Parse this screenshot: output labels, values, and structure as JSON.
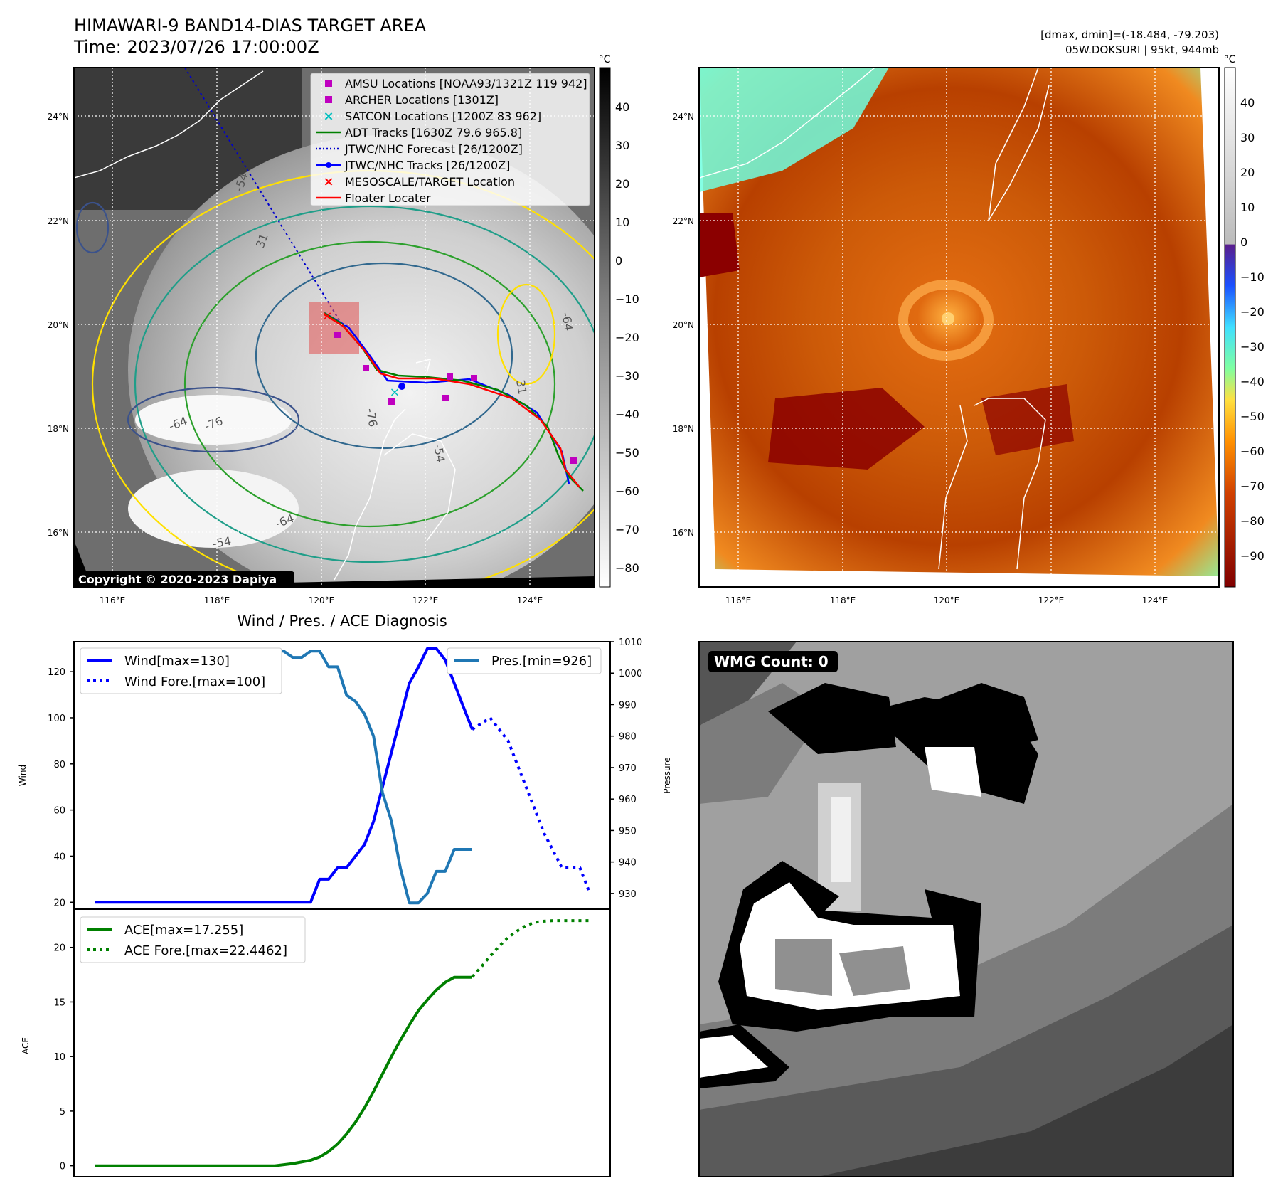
{
  "header": {
    "title": "HIMAWARI-9 BAND14-DIAS TARGET AREA",
    "time": "Time: 2023/07/26 17:00:00Z",
    "stats": "[dmax, dmin]=(-18.484, -79.203)",
    "storm": "05W.DOKSURI | 95kt, 944mb"
  },
  "map_left": {
    "copyright": "Copyright © 2020-2023 Dapiya",
    "lat_labels": [
      "24°N",
      "22°N",
      "20°N",
      "18°N",
      "16°N"
    ],
    "lon_labels": [
      "116°E",
      "118°E",
      "120°E",
      "122°E",
      "124°E"
    ],
    "colorbar_unit": "°C",
    "colorbar_ticks": [
      "40",
      "30",
      "20",
      "10",
      "0",
      "−10",
      "−20",
      "−30",
      "−40",
      "−50",
      "−60",
      "−70",
      "−80"
    ],
    "contour_labels": [
      "-54",
      "31",
      "-64",
      "-76",
      "-64",
      "-54",
      "-64",
      "31",
      "-76",
      "-54"
    ],
    "legend": [
      {
        "label": "AMSU Locations [NOAA93/1321Z 119 942]",
        "color": "#bf00bf",
        "marker": "square"
      },
      {
        "label": "ARCHER Locations [1301Z]",
        "color": "#bf00bf",
        "marker": "square"
      },
      {
        "label": "SATCON Locations [1200Z 83 962]",
        "color": "#00bfbf",
        "marker": "x"
      },
      {
        "label": "ADT Tracks [1630Z 79.6 965.8]",
        "color": "#008000",
        "marker": "line"
      },
      {
        "label": "JTWC/NHC Forecast [26/1200Z]",
        "color": "#0000cc",
        "marker": "dotted"
      },
      {
        "label": "JTWC/NHC Tracks [26/1200Z]",
        "color": "#0000ff",
        "marker": "line-dot"
      },
      {
        "label": "MESOSCALE/TARGET Location",
        "color": "#ff0000",
        "marker": "x"
      },
      {
        "label": "Floater Locater",
        "color": "#ff0000",
        "marker": "line"
      }
    ]
  },
  "map_right": {
    "lat_labels": [
      "24°N",
      "22°N",
      "20°N",
      "18°N",
      "16°N"
    ],
    "lon_labels": [
      "116°E",
      "118°E",
      "120°E",
      "122°E",
      "124°E"
    ],
    "colorbar_unit": "°C",
    "colorbar_ticks": [
      "40",
      "30",
      "20",
      "10",
      "0",
      "−10",
      "−20",
      "−30",
      "−40",
      "−50",
      "−60",
      "−70",
      "−80",
      "−90"
    ]
  },
  "wmg": {
    "label": "WMG Count: 0"
  },
  "colors": {
    "wind": "#0000ff",
    "pressure": "#1f77b4",
    "ace": "#008000",
    "track_red": "#ff0000",
    "contour_yellow": "#ffe000"
  },
  "chart_data": [
    {
      "type": "line",
      "title": "Wind / Pres. / ACE Diagnosis",
      "ylabel": "Wind",
      "ylabel2": "Pressure",
      "ylim": [
        17,
        133
      ],
      "ylim2": [
        925,
        1010
      ],
      "yticks": [
        "20",
        "40",
        "60",
        "80",
        "100",
        "120"
      ],
      "yticks2": [
        "930",
        "940",
        "950",
        "960",
        "970",
        "980",
        "990",
        "1000",
        "1010"
      ],
      "legend_left": [
        "Wind[max=130]",
        "Wind Fore.[max=100]"
      ],
      "legend_right": [
        "Pres.[min=926]"
      ],
      "series": [
        {
          "name": "Wind[max=130]",
          "axis": "left",
          "style": "solid",
          "x": [
            0,
            24,
            25,
            26,
            27,
            28,
            29,
            30,
            31,
            32,
            33,
            34,
            35,
            36,
            37,
            38,
            39,
            40,
            41,
            42
          ],
          "values": [
            20,
            20,
            30,
            30,
            35,
            35,
            40,
            45,
            55,
            70,
            85,
            100,
            115,
            122,
            130,
            130,
            125,
            115,
            105,
            95
          ]
        },
        {
          "name": "Wind Fore.[max=100]",
          "axis": "left",
          "style": "dotted",
          "x": [
            42,
            44,
            46,
            48,
            50,
            52,
            54,
            55
          ],
          "values": [
            95,
            100,
            90,
            70,
            50,
            35,
            35,
            25
          ]
        },
        {
          "name": "Pres.[min=926]",
          "axis": "right",
          "style": "solid",
          "x": [
            0,
            19,
            20,
            21,
            22,
            23,
            24,
            25,
            26,
            27,
            28,
            29,
            30,
            31,
            32,
            33,
            34,
            35,
            36,
            37,
            38,
            39,
            40,
            41,
            42
          ],
          "values": [
            1005,
            1005,
            1007,
            1007,
            1005,
            1005,
            1007,
            1007,
            1002,
            1002,
            993,
            991,
            987,
            980,
            962,
            953,
            938,
            927,
            927,
            930,
            937,
            937,
            944,
            944,
            944
          ]
        }
      ]
    },
    {
      "type": "line",
      "ylabel": "ACE",
      "ylim": [
        -1,
        23.5
      ],
      "yticks": [
        "0",
        "5",
        "10",
        "15",
        "20"
      ],
      "legend": [
        "ACE[max=17.255]",
        "ACE Fore.[max=22.4462]"
      ],
      "series": [
        {
          "name": "ACE[max=17.255]",
          "style": "solid",
          "x": [
            0,
            20,
            22,
            24,
            25,
            26,
            27,
            28,
            29,
            30,
            31,
            32,
            33,
            34,
            35,
            36,
            37,
            38,
            39,
            40,
            41,
            42
          ],
          "values": [
            0,
            0,
            0.2,
            0.5,
            0.8,
            1.3,
            2.0,
            2.9,
            4.0,
            5.3,
            6.8,
            8.4,
            10.0,
            11.5,
            12.9,
            14.2,
            15.2,
            16.1,
            16.8,
            17.255,
            17.255,
            17.255
          ]
        },
        {
          "name": "ACE Fore.[max=22.4462]",
          "style": "dotted",
          "x": [
            42,
            43,
            44,
            45,
            46,
            47,
            48,
            49,
            50,
            51,
            52,
            53,
            54,
            55
          ],
          "values": [
            17.3,
            18.2,
            19.2,
            20.1,
            20.9,
            21.5,
            22.0,
            22.3,
            22.4,
            22.45,
            22.45,
            22.45,
            22.45,
            22.45
          ]
        }
      ]
    }
  ]
}
